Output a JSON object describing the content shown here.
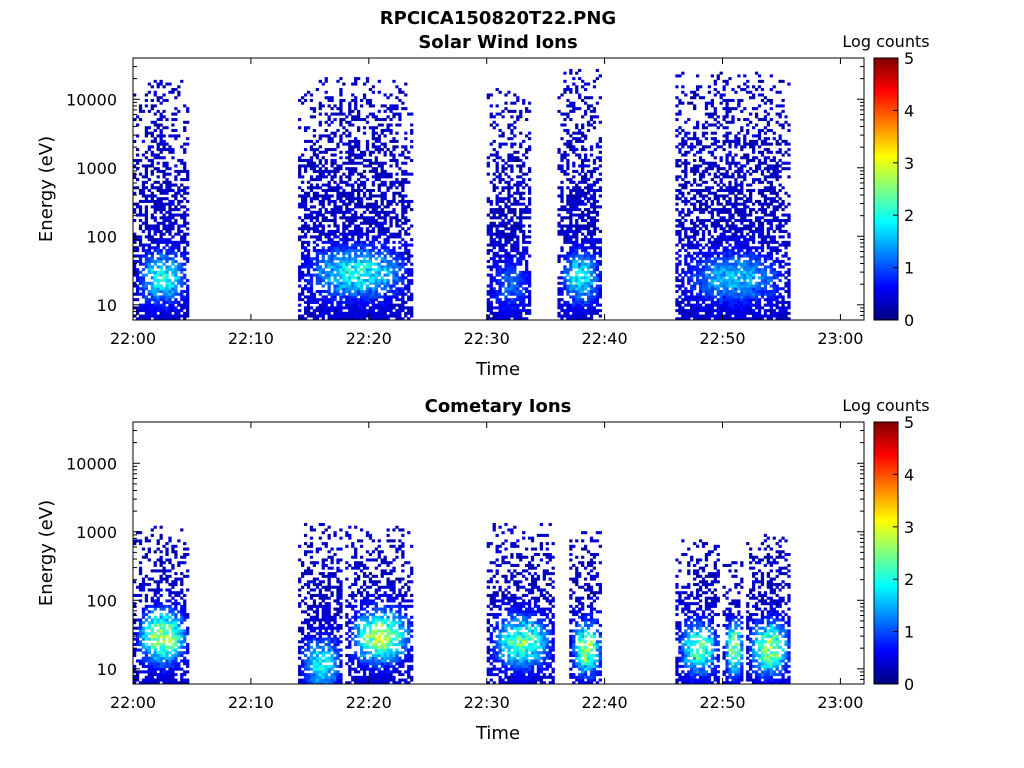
{
  "figure": {
    "title": "RPCICA150820T22.PNG"
  },
  "colormap": {
    "stops": [
      "#00007f",
      "#0000ff",
      "#007fff",
      "#00ffff",
      "#7fff7f",
      "#ffff00",
      "#ff7f00",
      "#ff0000",
      "#7f0000"
    ]
  },
  "chart_data": [
    {
      "type": "heatmap",
      "title": "Solar Wind Ions",
      "xlabel": "Time",
      "ylabel": "Energy (eV)",
      "yscale": "log",
      "xlim": [
        "22:00",
        "23:02"
      ],
      "ylim": [
        6,
        40000
      ],
      "x_ticks": [
        "22:00",
        "22:10",
        "22:20",
        "22:30",
        "22:40",
        "22:50",
        "23:00"
      ],
      "y_ticks": [
        10,
        100,
        1000,
        10000
      ],
      "colorbar": {
        "label": "Log counts",
        "range": [
          0,
          5
        ],
        "ticks": [
          0,
          1,
          2,
          3,
          4,
          5
        ]
      },
      "bursts": [
        {
          "t_start": "22:00",
          "t_end": "22:04",
          "e_min": 6,
          "e_max": 20000,
          "peak_log_counts": 2.0,
          "peak_energy": 25
        },
        {
          "t_start": "22:14",
          "t_end": "22:23",
          "e_min": 6,
          "e_max": 22000,
          "peak_log_counts": 2.0,
          "peak_energy": 30
        },
        {
          "t_start": "22:30",
          "t_end": "22:33",
          "e_min": 6,
          "e_max": 15000,
          "peak_log_counts": 1.0,
          "peak_energy": 20
        },
        {
          "t_start": "22:36",
          "t_end": "22:39",
          "e_min": 6,
          "e_max": 28000,
          "peak_log_counts": 2.0,
          "peak_energy": 25
        },
        {
          "t_start": "22:46",
          "t_end": "22:55",
          "e_min": 6,
          "e_max": 25000,
          "peak_log_counts": 1.5,
          "peak_energy": 25
        }
      ]
    },
    {
      "type": "heatmap",
      "title": "Cometary Ions",
      "xlabel": "Time",
      "ylabel": "Energy (eV)",
      "yscale": "log",
      "xlim": [
        "22:00",
        "23:02"
      ],
      "ylim": [
        6,
        40000
      ],
      "x_ticks": [
        "22:00",
        "22:10",
        "22:20",
        "22:30",
        "22:40",
        "22:50",
        "23:00"
      ],
      "y_ticks": [
        10,
        100,
        1000,
        10000
      ],
      "colorbar": {
        "label": "Log counts",
        "range": [
          0,
          5
        ],
        "ticks": [
          0,
          1,
          2,
          3,
          4,
          5
        ]
      },
      "bursts": [
        {
          "t_start": "22:00",
          "t_end": "22:04",
          "e_min": 6,
          "e_max": 1200,
          "peak_log_counts": 3.0,
          "peak_energy": 30
        },
        {
          "t_start": "22:14",
          "t_end": "22:17",
          "e_min": 6,
          "e_max": 1300,
          "peak_log_counts": 2.0,
          "peak_energy": 12
        },
        {
          "t_start": "22:18",
          "t_end": "22:23",
          "e_min": 6,
          "e_max": 1200,
          "peak_log_counts": 3.0,
          "peak_energy": 30
        },
        {
          "t_start": "22:30",
          "t_end": "22:35",
          "e_min": 6,
          "e_max": 1300,
          "peak_log_counts": 2.5,
          "peak_energy": 25
        },
        {
          "t_start": "22:37",
          "t_end": "22:39",
          "e_min": 6,
          "e_max": 1000,
          "peak_log_counts": 3.0,
          "peak_energy": 20
        },
        {
          "t_start": "22:46",
          "t_end": "22:49",
          "e_min": 6,
          "e_max": 800,
          "peak_log_counts": 2.5,
          "peak_energy": 20
        },
        {
          "t_start": "22:50",
          "t_end": "22:51",
          "e_min": 6,
          "e_max": 400,
          "peak_log_counts": 3.0,
          "peak_energy": 20
        },
        {
          "t_start": "22:52",
          "t_end": "22:55",
          "e_min": 6,
          "e_max": 900,
          "peak_log_counts": 3.0,
          "peak_energy": 20
        }
      ]
    }
  ]
}
